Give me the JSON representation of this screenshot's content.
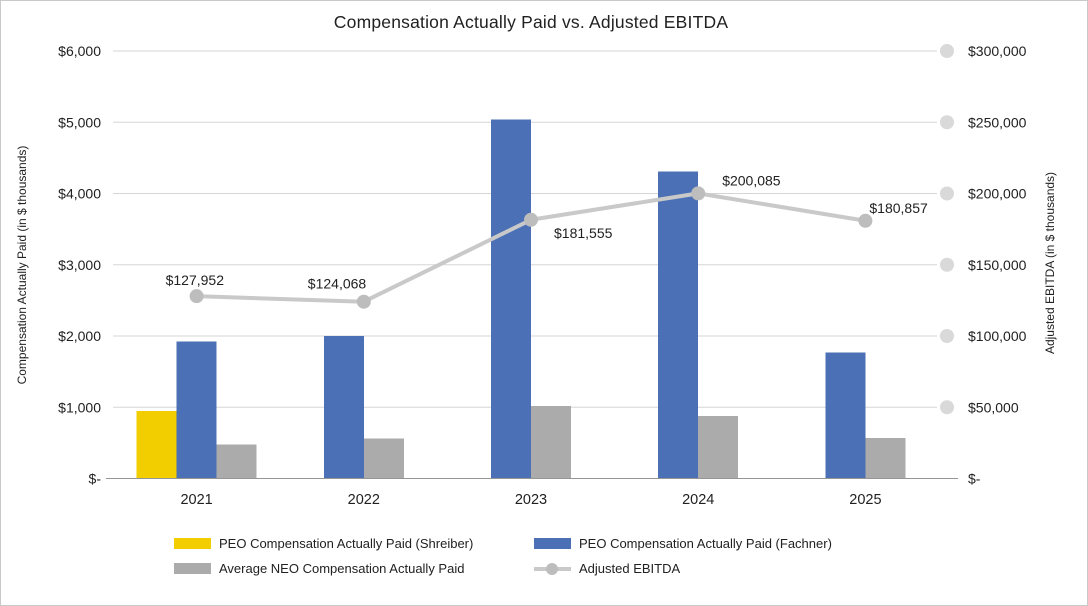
{
  "title": "Compensation Actually Paid vs. Adjusted EBITDA",
  "colors": {
    "peo_shreiber_yellow": "#F2CD00",
    "peo_fachner_blue": "#4B70B5",
    "avg_neo_gray": "#ABABAB",
    "ebitda_line_gray": "#C9C9C9",
    "ebitda_marker_gray": "#BDBDBD",
    "gridline": "#D5D5D5",
    "grid_end_dot": "#D9D9D9",
    "axis_line": "#969696",
    "text": "#212121"
  },
  "chart_data": {
    "type": "bar",
    "subtype": "grouped-bar-with-line-combo",
    "title": "Compensation Actually Paid vs. Adjusted EBITDA",
    "categories": [
      "2021",
      "2022",
      "2023",
      "2024",
      "2025"
    ],
    "series": [
      {
        "name": "PEO Compensation Actually Paid (Shreiber)",
        "type": "bar",
        "axis": "left",
        "color": "#F2CD00",
        "values": [
          950,
          null,
          null,
          null,
          null
        ]
      },
      {
        "name": "PEO Compensation Actually Paid (Fachner)",
        "type": "bar",
        "axis": "left",
        "color": "#4B70B5",
        "values": [
          1920,
          2000,
          5040,
          4310,
          1770
        ]
      },
      {
        "name": "Average NEO Compensation Actually Paid",
        "type": "bar",
        "axis": "left",
        "color": "#ABABAB",
        "values": [
          480,
          560,
          1020,
          880,
          570
        ]
      },
      {
        "name": "Adjusted EBITDA",
        "type": "line",
        "axis": "right",
        "color": "#C9C9C9",
        "marker_color": "#BDBDBD",
        "values": [
          127952,
          124068,
          181555,
          200085,
          180857
        ],
        "data_labels": [
          "$127,952",
          "$124,068",
          "$181,555",
          "$200,085",
          "$180,857"
        ]
      }
    ],
    "ylabel_left": "Compensation Actually Paid (in $ thousands)",
    "ylabel_right": "Adjusted EBITDA (in $ thousands)",
    "left_axis": {
      "min": 0,
      "max": 6000,
      "step": 1000,
      "tick_labels_top_to_bottom": [
        "$6,000",
        "$5,000",
        "$4,000",
        "$3,000",
        "$2,000",
        "$1,000",
        "$-"
      ]
    },
    "right_axis": {
      "min": 0,
      "max": 300000,
      "step": 50000,
      "tick_labels_top_to_bottom": [
        "$300,000",
        "$250,000",
        "$200,000",
        "$150,000",
        "$100,000",
        "$50,000",
        "$-"
      ]
    },
    "grid": true,
    "legend_position": "bottom"
  },
  "legend": {
    "items": [
      {
        "label": "PEO Compensation Actually Paid (Shreiber)",
        "swatch": "bar-yellow"
      },
      {
        "label": "PEO Compensation Actually Paid (Fachner)",
        "swatch": "bar-blue"
      },
      {
        "label": "Average NEO Compensation Actually Paid",
        "swatch": "bar-gray"
      },
      {
        "label": "Adjusted EBITDA",
        "swatch": "line-gray"
      }
    ]
  }
}
